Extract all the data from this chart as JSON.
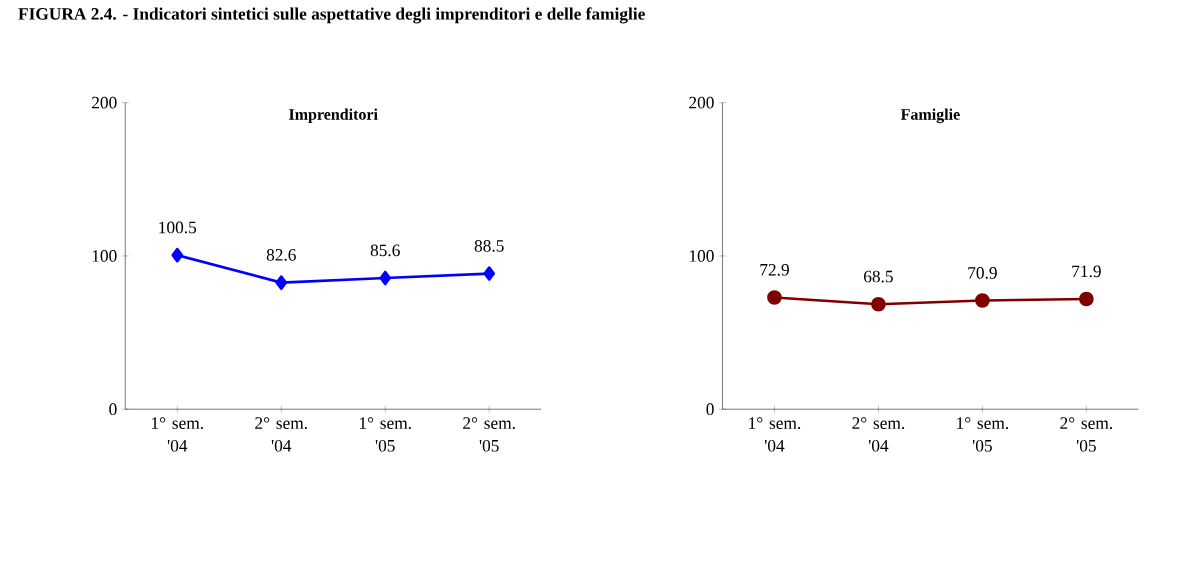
{
  "chart_data": [
    {
      "type": "line",
      "title": "FIGURA 2.4. - Indicatori sintetici sulle aspettative degli imprenditori e delle famiglie",
      "subtitle": "Imprenditori",
      "categories": [
        "1° sem. '04",
        "2° sem. '04",
        "1° sem. '05",
        "2° sem. '05"
      ],
      "values": [
        100.5,
        82.6,
        85.6,
        88.5
      ],
      "color": "#0000ff",
      "marker": "diamond",
      "data_labels": true,
      "ylim": [
        0,
        200
      ],
      "yticks": [
        0,
        100,
        200
      ],
      "grid": false
    },
    {
      "type": "line",
      "title": "Famiglie",
      "categories": [
        "1° sem. '04",
        "2° sem. '04",
        "1° sem. '05",
        "2° sem. '05"
      ],
      "values": [
        72.9,
        68.5,
        70.9,
        71.9
      ],
      "color": "#800000",
      "marker": "circle",
      "data_labels": true,
      "ylim": [
        0,
        200
      ],
      "yticks": [
        0,
        100,
        200
      ],
      "grid": false
    }
  ]
}
